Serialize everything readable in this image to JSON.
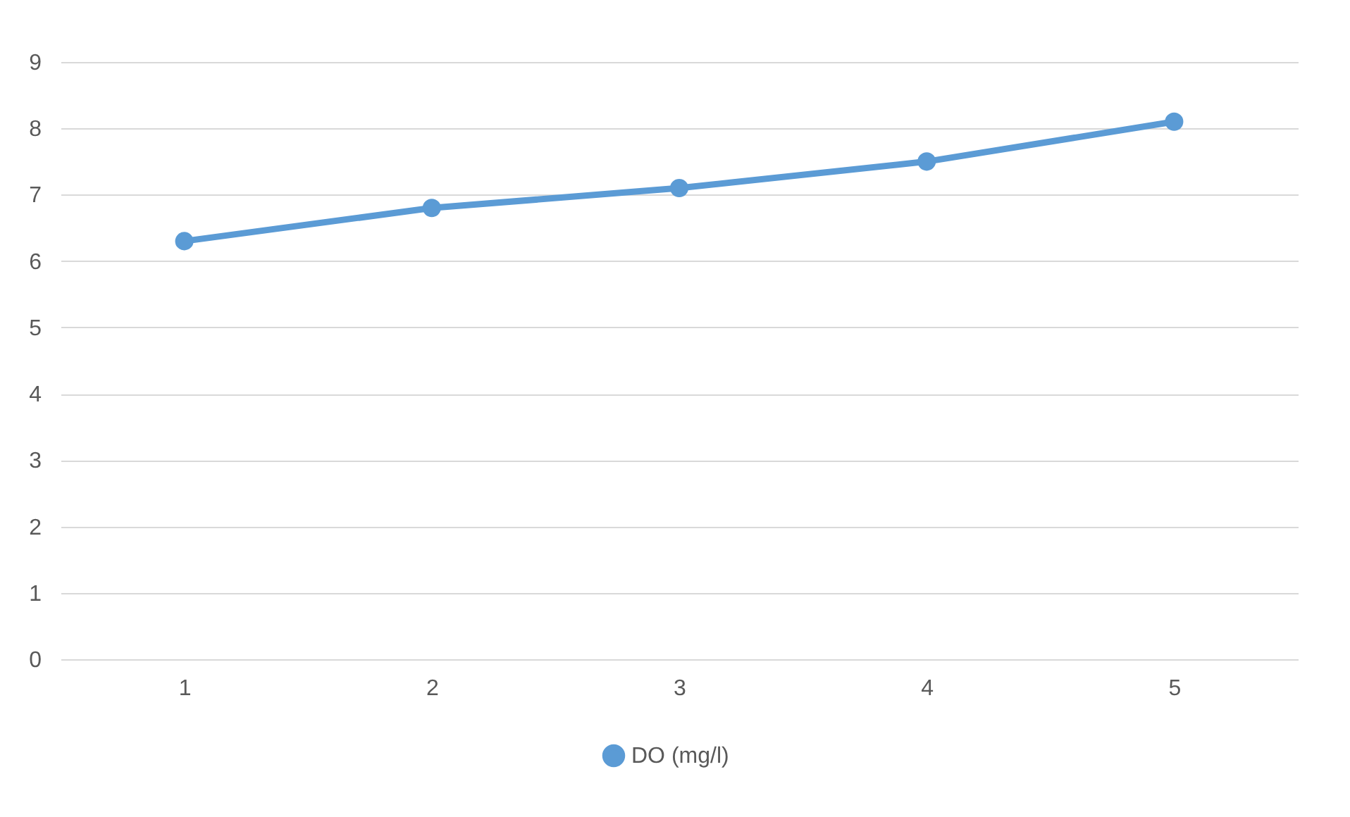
{
  "chart_data": {
    "type": "line",
    "categories": [
      "1",
      "2",
      "3",
      "4",
      "5"
    ],
    "series": [
      {
        "name": "DO (mg/l)",
        "color": "#5b9bd5",
        "values": [
          6.3,
          6.8,
          7.1,
          7.5,
          8.1
        ]
      }
    ],
    "ylim": [
      0,
      9
    ],
    "yticks": [
      0,
      1,
      2,
      3,
      4,
      5,
      6,
      7,
      8,
      9
    ],
    "grid": "y",
    "legend": "bottom",
    "marker": "circle",
    "line_style": "solid"
  }
}
